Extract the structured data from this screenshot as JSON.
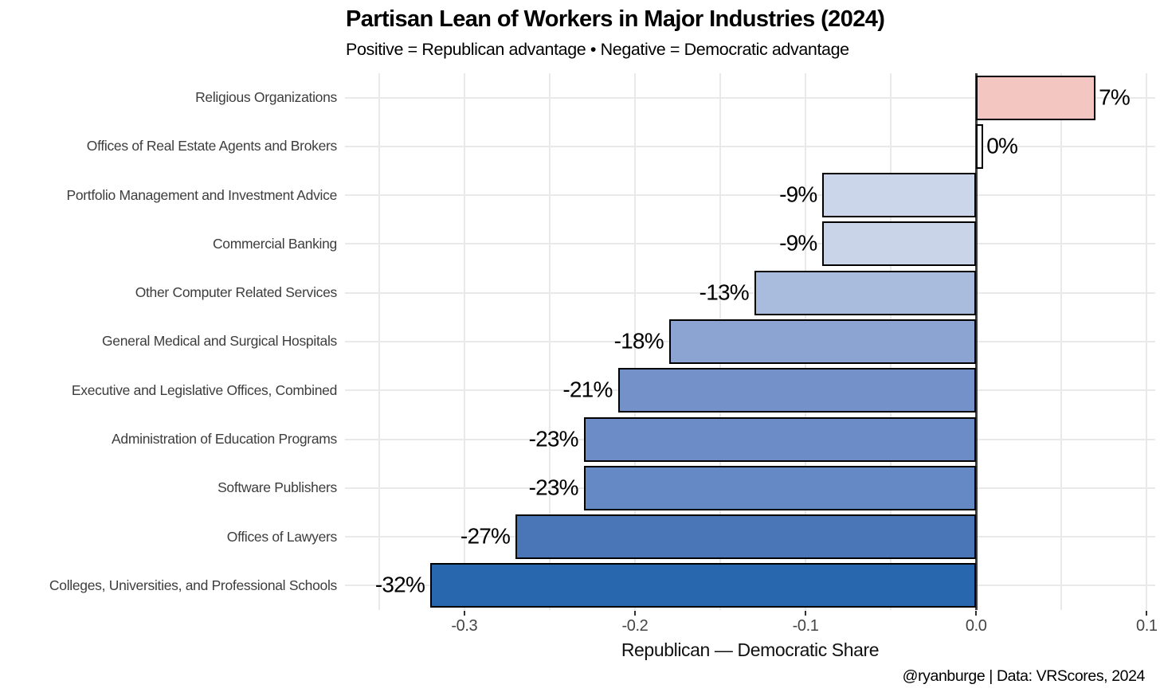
{
  "chart_data": {
    "type": "bar",
    "orientation": "horizontal",
    "title": "Partisan Lean of Workers in Major Industries (2024)",
    "subtitle": "Positive = Republican advantage • Negative = Democratic advantage",
    "xlabel": "Republican — Democratic Share",
    "credit": "@ryanburge | Data: VRScores, 2024",
    "xlim": [
      -0.37,
      0.105
    ],
    "grid": true,
    "grid_step": 0.05,
    "legend_position": "none",
    "x_ticks": [
      {
        "value": -0.3,
        "label": "-0.3"
      },
      {
        "value": -0.2,
        "label": "-0.2"
      },
      {
        "value": -0.1,
        "label": "-0.1"
      },
      {
        "value": 0.0,
        "label": "0.0"
      },
      {
        "value": 0.1,
        "label": "0.1"
      }
    ],
    "categories": [
      "Religious Organizations",
      "Offices of Real Estate Agents and Brokers",
      "Portfolio Management and Investment Advice",
      "Commercial Banking",
      "Other Computer Related Services",
      "General Medical and Surgical Hospitals",
      "Executive and Legislative Offices, Combined",
      "Administration of Education Programs",
      "Software Publishers",
      "Offices of Lawyers",
      "Colleges, Universities, and Professional Schools"
    ],
    "values": [
      0.07,
      0.0,
      -0.09,
      -0.09,
      -0.13,
      -0.18,
      -0.21,
      -0.23,
      -0.23,
      -0.27,
      -0.32
    ],
    "value_labels": [
      "7%",
      "0%",
      "-9%",
      "-9%",
      "-13%",
      "-18%",
      "-21%",
      "-23%",
      "-23%",
      "-27%",
      "-32%"
    ],
    "bar_colors": [
      "#f4c6c2",
      "#fefefe",
      "#cbd6ea",
      "#c9d4e9",
      "#aabcde",
      "#8ca4d2",
      "#7492c9",
      "#6b8cc6",
      "#6589c4",
      "#4a75b6",
      "#2866ae"
    ],
    "style_colors": {
      "zero_line": "#3c3c3c",
      "grid": "#e9e9e9",
      "bar_border": "#000000",
      "background": "#ffffff"
    }
  }
}
